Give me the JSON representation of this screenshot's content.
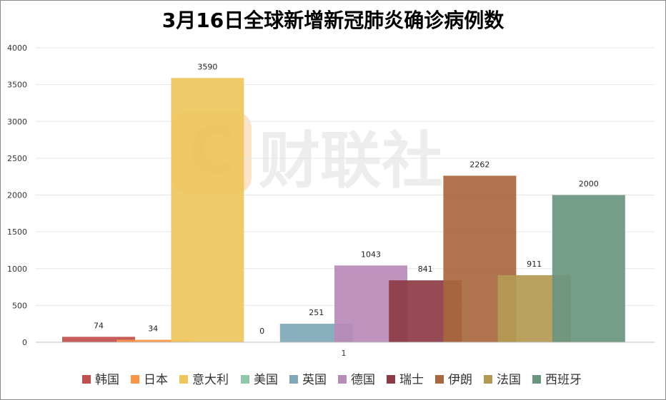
{
  "chart_data": {
    "type": "bar",
    "title": "3月16日全球新增新冠肺炎确诊病例数",
    "categories": [
      "1"
    ],
    "ylim": [
      0,
      4000
    ],
    "yticks": [
      0,
      500,
      1000,
      1500,
      2000,
      2500,
      3000,
      3500,
      4000
    ],
    "grid": true,
    "legend_position": "bottom",
    "series": [
      {
        "name": "韩国",
        "values": [
          74
        ],
        "color": "#C0504D"
      },
      {
        "name": "日本",
        "values": [
          34
        ],
        "color": "#F79646"
      },
      {
        "name": "意大利",
        "values": [
          3590
        ],
        "color": "#EEC65C"
      },
      {
        "name": "美国",
        "values": [
          0
        ],
        "color": "#8FC8A8"
      },
      {
        "name": "英国",
        "values": [
          251
        ],
        "color": "#7FA7B5"
      },
      {
        "name": "德国",
        "values": [
          1043
        ],
        "color": "#B88AB8"
      },
      {
        "name": "瑞士",
        "values": [
          841
        ],
        "color": "#8C3B45"
      },
      {
        "name": "伊朗",
        "values": [
          2262
        ],
        "color": "#A8673E"
      },
      {
        "name": "法国",
        "values": [
          911
        ],
        "color": "#B39A52"
      },
      {
        "name": "西班牙",
        "values": [
          2000
        ],
        "color": "#6A9580"
      }
    ]
  },
  "watermark": {
    "text": "财联社",
    "logo_letter": "C"
  }
}
